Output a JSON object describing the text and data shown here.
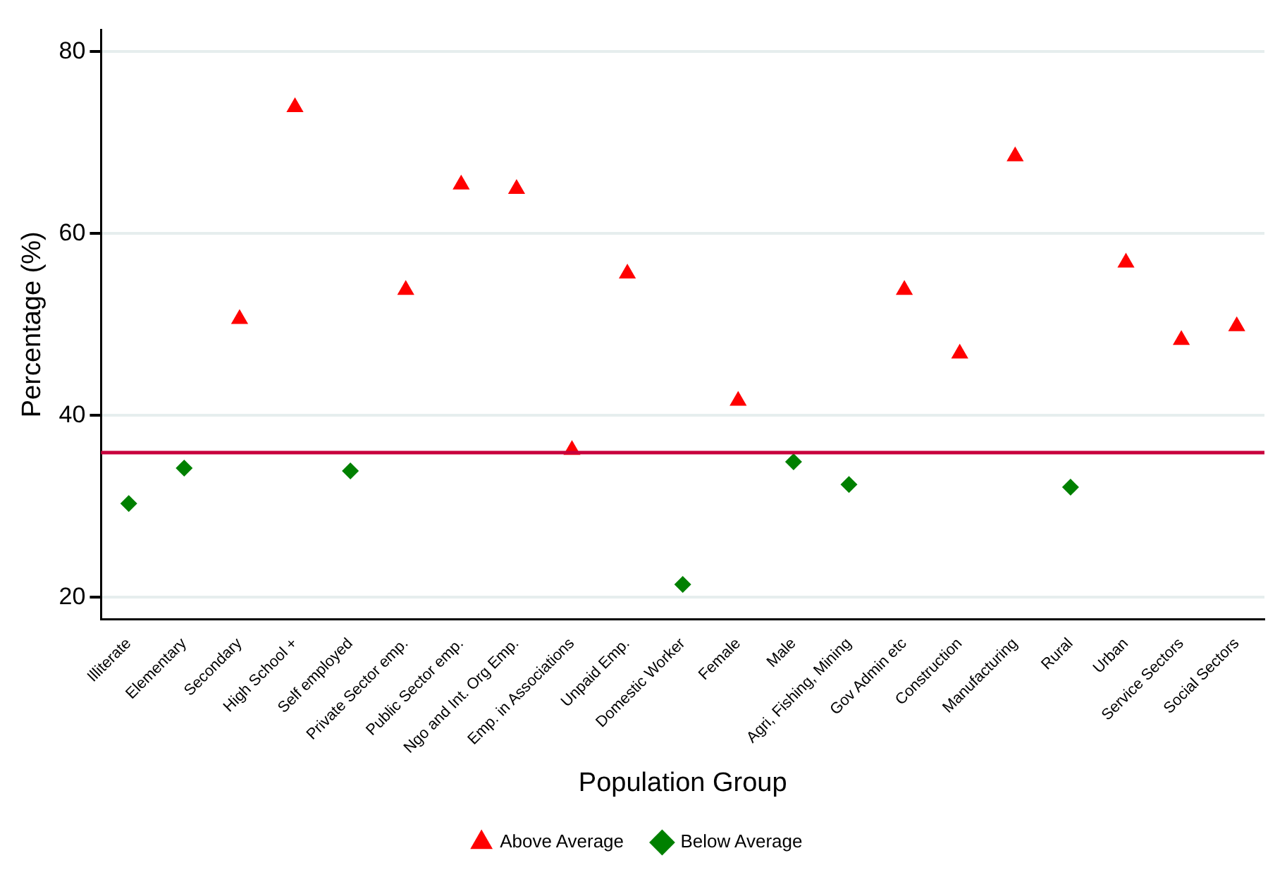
{
  "chart_data": {
    "type": "scatter",
    "xlabel": "Population Group",
    "ylabel": "Percentage (%)",
    "categories": [
      "Illiterate",
      "Elementary",
      "Secondary",
      "High School +",
      "Self employed",
      "Private Sector emp.",
      "Public Sector emp.",
      "Ngo and Int. Org Emp.",
      "Emp. in Associations",
      "Unpaid Emp.",
      "Domestic Worker",
      "Female",
      "Male",
      "Agri, Fishing, Mining",
      "Gov Admin etc",
      "Construction",
      "Manufacturing",
      "Rural",
      "Urban",
      "Service Sectors",
      "Social Sectors"
    ],
    "series": [
      {
        "name": "Above Average",
        "color": "#ff0000",
        "marker": "triangle",
        "values": [
          null,
          null,
          50.6,
          73.9,
          null,
          53.8,
          65.4,
          64.9,
          36.2,
          55.6,
          null,
          41.6,
          null,
          null,
          53.8,
          46.8,
          68.5,
          null,
          56.8,
          48.3,
          49.8
        ]
      },
      {
        "name": "Below Average",
        "color": "#008000",
        "marker": "diamond",
        "values": [
          30.3,
          34.2,
          null,
          null,
          33.9,
          null,
          null,
          null,
          null,
          null,
          21.4,
          null,
          34.9,
          32.4,
          null,
          null,
          null,
          32.1,
          null,
          null,
          null
        ]
      }
    ],
    "ylim": [
      17.6,
      82.4
    ],
    "yticks": [
      20,
      40,
      60,
      80
    ],
    "grid": "y",
    "legend": "bottom",
    "ref_lines": [
      {
        "axis": "y",
        "value": 35.9,
        "color": "#c8003c"
      }
    ]
  }
}
